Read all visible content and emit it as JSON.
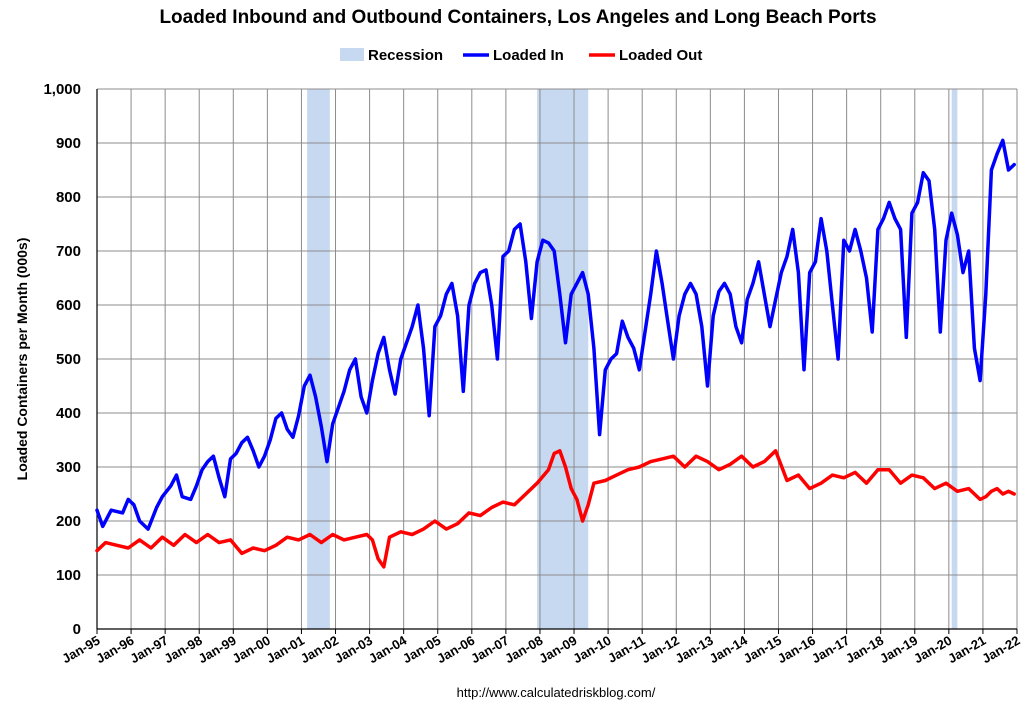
{
  "chart_data": {
    "type": "line",
    "title": "Loaded Inbound and Outbound Containers, Los Angeles and Long Beach Ports",
    "xlabel": "",
    "ylabel": "Loaded Containers per Month (000s)",
    "source_text": "http://www.calculatedriskblog.com/",
    "ylim": [
      0,
      1000
    ],
    "xlim": [
      "1995-01",
      "2022-01"
    ],
    "y_ticks": [
      "0",
      "100",
      "200",
      "300",
      "400",
      "500",
      "600",
      "700",
      "800",
      "900",
      "1,000"
    ],
    "x_ticks": [
      "Jan-95",
      "Jan-96",
      "Jan-97",
      "Jan-98",
      "Jan-99",
      "Jan-00",
      "Jan-01",
      "Jan-02",
      "Jan-03",
      "Jan-04",
      "Jan-05",
      "Jan-06",
      "Jan-07",
      "Jan-08",
      "Jan-09",
      "Jan-10",
      "Jan-11",
      "Jan-12",
      "Jan-13",
      "Jan-14",
      "Jan-15",
      "Jan-16",
      "Jan-17",
      "Jan-18",
      "Jan-19",
      "Jan-20",
      "Jan-21",
      "Jan-22"
    ],
    "grid": true,
    "legend_position": "top-center",
    "legend": [
      "Recession",
      "Loaded In",
      "Loaded Out"
    ],
    "recessions": [
      {
        "start": "2001-03",
        "end": "2001-11"
      },
      {
        "start": "2007-12",
        "end": "2009-06"
      },
      {
        "start": "2020-02",
        "end": "2020-04"
      }
    ],
    "series": [
      {
        "name": "Loaded In",
        "color": "#0000ff",
        "points": [
          [
            "1995-01",
            220
          ],
          [
            "1995-03",
            190
          ],
          [
            "1995-06",
            220
          ],
          [
            "1995-10",
            215
          ],
          [
            "1995-12",
            240
          ],
          [
            "1996-02",
            230
          ],
          [
            "1996-04",
            200
          ],
          [
            "1996-07",
            185
          ],
          [
            "1996-10",
            225
          ],
          [
            "1996-12",
            245
          ],
          [
            "1997-03",
            265
          ],
          [
            "1997-05",
            285
          ],
          [
            "1997-07",
            245
          ],
          [
            "1997-10",
            240
          ],
          [
            "1997-12",
            265
          ],
          [
            "1998-02",
            295
          ],
          [
            "1998-04",
            310
          ],
          [
            "1998-06",
            320
          ],
          [
            "1998-08",
            280
          ],
          [
            "1998-10",
            245
          ],
          [
            "1998-12",
            315
          ],
          [
            "1999-02",
            325
          ],
          [
            "1999-04",
            345
          ],
          [
            "1999-06",
            355
          ],
          [
            "1999-08",
            330
          ],
          [
            "1999-10",
            300
          ],
          [
            "1999-12",
            320
          ],
          [
            "2000-02",
            350
          ],
          [
            "2000-04",
            390
          ],
          [
            "2000-06",
            400
          ],
          [
            "2000-08",
            370
          ],
          [
            "2000-10",
            355
          ],
          [
            "2000-12",
            395
          ],
          [
            "2001-02",
            450
          ],
          [
            "2001-04",
            470
          ],
          [
            "2001-06",
            430
          ],
          [
            "2001-08",
            375
          ],
          [
            "2001-10",
            310
          ],
          [
            "2001-12",
            380
          ],
          [
            "2002-02",
            410
          ],
          [
            "2002-04",
            440
          ],
          [
            "2002-06",
            480
          ],
          [
            "2002-08",
            500
          ],
          [
            "2002-10",
            430
          ],
          [
            "2002-12",
            400
          ],
          [
            "2003-02",
            460
          ],
          [
            "2003-04",
            510
          ],
          [
            "2003-06",
            540
          ],
          [
            "2003-08",
            480
          ],
          [
            "2003-10",
            435
          ],
          [
            "2003-12",
            500
          ],
          [
            "2004-02",
            530
          ],
          [
            "2004-04",
            560
          ],
          [
            "2004-06",
            600
          ],
          [
            "2004-08",
            520
          ],
          [
            "2004-10",
            395
          ],
          [
            "2004-12",
            560
          ],
          [
            "2005-02",
            580
          ],
          [
            "2005-04",
            620
          ],
          [
            "2005-06",
            640
          ],
          [
            "2005-08",
            580
          ],
          [
            "2005-10",
            440
          ],
          [
            "2005-12",
            600
          ],
          [
            "2006-02",
            640
          ],
          [
            "2006-04",
            660
          ],
          [
            "2006-06",
            665
          ],
          [
            "2006-08",
            600
          ],
          [
            "2006-10",
            500
          ],
          [
            "2006-12",
            690
          ],
          [
            "2007-02",
            700
          ],
          [
            "2007-04",
            740
          ],
          [
            "2007-06",
            750
          ],
          [
            "2007-08",
            680
          ],
          [
            "2007-10",
            575
          ],
          [
            "2007-12",
            680
          ],
          [
            "2008-02",
            720
          ],
          [
            "2008-04",
            715
          ],
          [
            "2008-06",
            700
          ],
          [
            "2008-08",
            620
          ],
          [
            "2008-10",
            530
          ],
          [
            "2008-12",
            620
          ],
          [
            "2009-02",
            640
          ],
          [
            "2009-04",
            660
          ],
          [
            "2009-06",
            620
          ],
          [
            "2009-08",
            520
          ],
          [
            "2009-10",
            360
          ],
          [
            "2009-12",
            480
          ],
          [
            "2010-02",
            500
          ],
          [
            "2010-04",
            510
          ],
          [
            "2010-06",
            570
          ],
          [
            "2010-08",
            540
          ],
          [
            "2010-10",
            520
          ],
          [
            "2010-12",
            480
          ],
          [
            "2011-02",
            550
          ],
          [
            "2011-04",
            620
          ],
          [
            "2011-06",
            700
          ],
          [
            "2011-08",
            640
          ],
          [
            "2011-10",
            570
          ],
          [
            "2011-12",
            500
          ],
          [
            "2012-02",
            580
          ],
          [
            "2012-04",
            620
          ],
          [
            "2012-06",
            640
          ],
          [
            "2012-08",
            620
          ],
          [
            "2012-10",
            560
          ],
          [
            "2012-12",
            450
          ],
          [
            "2013-02",
            580
          ],
          [
            "2013-04",
            625
          ],
          [
            "2013-06",
            640
          ],
          [
            "2013-08",
            620
          ],
          [
            "2013-10",
            560
          ],
          [
            "2013-12",
            530
          ],
          [
            "2014-02",
            610
          ],
          [
            "2014-04",
            640
          ],
          [
            "2014-06",
            680
          ],
          [
            "2014-08",
            620
          ],
          [
            "2014-10",
            560
          ],
          [
            "2014-12",
            610
          ],
          [
            "2015-02",
            660
          ],
          [
            "2015-04",
            690
          ],
          [
            "2015-06",
            740
          ],
          [
            "2015-08",
            660
          ],
          [
            "2015-10",
            480
          ],
          [
            "2015-12",
            660
          ],
          [
            "2016-02",
            680
          ],
          [
            "2016-04",
            760
          ],
          [
            "2016-06",
            700
          ],
          [
            "2016-08",
            600
          ],
          [
            "2016-10",
            500
          ],
          [
            "2016-12",
            720
          ],
          [
            "2017-02",
            700
          ],
          [
            "2017-04",
            740
          ],
          [
            "2017-06",
            700
          ],
          [
            "2017-08",
            650
          ],
          [
            "2017-10",
            550
          ],
          [
            "2017-12",
            740
          ],
          [
            "2018-02",
            760
          ],
          [
            "2018-04",
            790
          ],
          [
            "2018-06",
            760
          ],
          [
            "2018-08",
            740
          ],
          [
            "2018-10",
            540
          ],
          [
            "2018-12",
            770
          ],
          [
            "2019-02",
            790
          ],
          [
            "2019-04",
            845
          ],
          [
            "2019-06",
            830
          ],
          [
            "2019-08",
            740
          ],
          [
            "2019-10",
            550
          ],
          [
            "2019-12",
            720
          ],
          [
            "2020-02",
            770
          ],
          [
            "2020-04",
            730
          ],
          [
            "2020-06",
            660
          ],
          [
            "2020-08",
            700
          ],
          [
            "2020-10",
            520
          ],
          [
            "2020-12",
            460
          ],
          [
            "2021-02",
            620
          ],
          [
            "2021-04",
            850
          ],
          [
            "2021-06",
            880
          ],
          [
            "2021-08",
            905
          ],
          [
            "2021-10",
            850
          ],
          [
            "2021-12",
            860
          ]
        ]
      },
      {
        "name": "Loaded Out",
        "color": "#ff0000",
        "points": [
          [
            "1995-01",
            145
          ],
          [
            "1995-04",
            160
          ],
          [
            "1995-08",
            155
          ],
          [
            "1995-12",
            150
          ],
          [
            "1996-04",
            165
          ],
          [
            "1996-08",
            150
          ],
          [
            "1996-12",
            170
          ],
          [
            "1997-04",
            155
          ],
          [
            "1997-08",
            175
          ],
          [
            "1997-12",
            160
          ],
          [
            "1998-04",
            175
          ],
          [
            "1998-08",
            160
          ],
          [
            "1998-12",
            165
          ],
          [
            "1999-04",
            140
          ],
          [
            "1999-08",
            150
          ],
          [
            "1999-12",
            145
          ],
          [
            "2000-04",
            155
          ],
          [
            "2000-08",
            170
          ],
          [
            "2000-12",
            165
          ],
          [
            "2001-04",
            175
          ],
          [
            "2001-08",
            160
          ],
          [
            "2001-12",
            175
          ],
          [
            "2002-04",
            165
          ],
          [
            "2002-08",
            170
          ],
          [
            "2002-12",
            175
          ],
          [
            "2003-02",
            165
          ],
          [
            "2003-04",
            130
          ],
          [
            "2003-06",
            115
          ],
          [
            "2003-08",
            170
          ],
          [
            "2003-12",
            180
          ],
          [
            "2004-04",
            175
          ],
          [
            "2004-08",
            185
          ],
          [
            "2004-12",
            200
          ],
          [
            "2005-04",
            185
          ],
          [
            "2005-08",
            195
          ],
          [
            "2005-12",
            215
          ],
          [
            "2006-04",
            210
          ],
          [
            "2006-08",
            225
          ],
          [
            "2006-12",
            235
          ],
          [
            "2007-04",
            230
          ],
          [
            "2007-08",
            250
          ],
          [
            "2007-12",
            270
          ],
          [
            "2008-04",
            295
          ],
          [
            "2008-06",
            325
          ],
          [
            "2008-08",
            330
          ],
          [
            "2008-10",
            300
          ],
          [
            "2008-12",
            260
          ],
          [
            "2009-02",
            240
          ],
          [
            "2009-04",
            200
          ],
          [
            "2009-06",
            230
          ],
          [
            "2009-08",
            270
          ],
          [
            "2009-12",
            275
          ],
          [
            "2010-04",
            285
          ],
          [
            "2010-08",
            295
          ],
          [
            "2010-12",
            300
          ],
          [
            "2011-04",
            310
          ],
          [
            "2011-08",
            315
          ],
          [
            "2011-12",
            320
          ],
          [
            "2012-04",
            300
          ],
          [
            "2012-08",
            320
          ],
          [
            "2012-12",
            310
          ],
          [
            "2013-04",
            295
          ],
          [
            "2013-08",
            305
          ],
          [
            "2013-12",
            320
          ],
          [
            "2014-04",
            300
          ],
          [
            "2014-08",
            310
          ],
          [
            "2014-12",
            330
          ],
          [
            "2015-04",
            275
          ],
          [
            "2015-08",
            285
          ],
          [
            "2015-12",
            260
          ],
          [
            "2016-04",
            270
          ],
          [
            "2016-08",
            285
          ],
          [
            "2016-12",
            280
          ],
          [
            "2017-04",
            290
          ],
          [
            "2017-08",
            270
          ],
          [
            "2017-12",
            295
          ],
          [
            "2018-04",
            295
          ],
          [
            "2018-08",
            270
          ],
          [
            "2018-12",
            285
          ],
          [
            "2019-04",
            280
          ],
          [
            "2019-08",
            260
          ],
          [
            "2019-12",
            270
          ],
          [
            "2020-04",
            255
          ],
          [
            "2020-08",
            260
          ],
          [
            "2020-12",
            240
          ],
          [
            "2021-02",
            245
          ],
          [
            "2021-04",
            255
          ],
          [
            "2021-06",
            260
          ],
          [
            "2021-08",
            250
          ],
          [
            "2021-10",
            255
          ],
          [
            "2021-12",
            250
          ]
        ]
      }
    ]
  }
}
